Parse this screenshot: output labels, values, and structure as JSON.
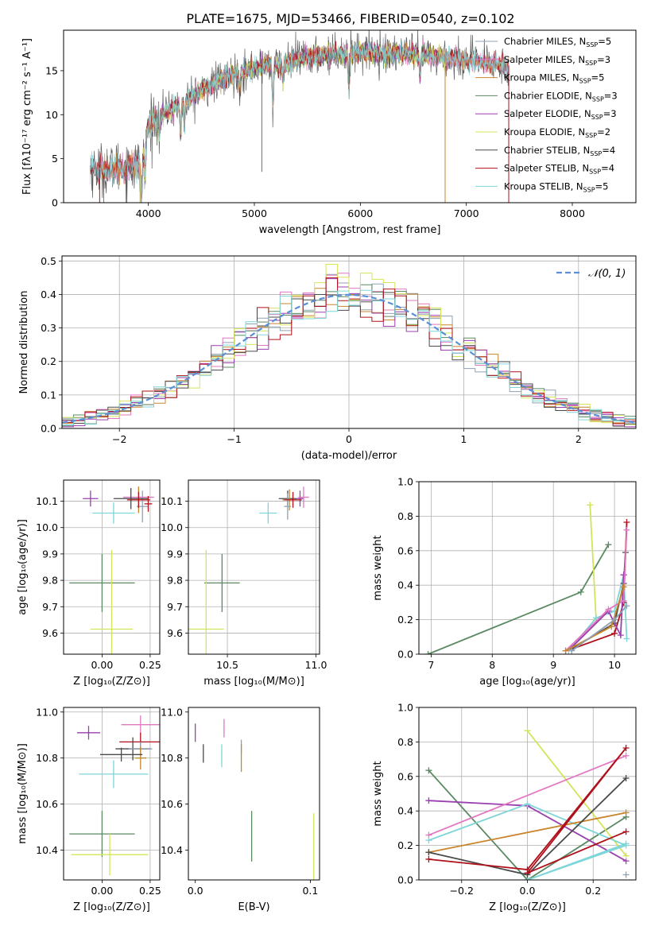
{
  "title": "PLATE=1675, MJD=53466, FIBERID=0540, z=0.102",
  "colors": {
    "Chabrier MILES": "#8fa1b3",
    "Salpeter MILES": "#e377c2",
    "Kroupa MILES": "#c8852b",
    "Chabrier ELODIE": "#5a8a62",
    "Salpeter ELODIE": "#9a3fb0",
    "Kroupa ELODIE": "#d4e45a",
    "Chabrier STELIB": "#4a4a4a",
    "Salpeter STELIB": "#b0101a",
    "Kroupa STELIB": "#7fd6d8",
    "normal": "#5b8fd6"
  },
  "chart_data": [
    {
      "id": "spectrum",
      "type": "line",
      "title": "PLATE=1675, MJD=53466, FIBERID=0540, z=0.102",
      "xlabel": "wavelength [Angstrom, rest frame]",
      "ylabel": "Flux [fλ10⁻¹⁷ erg cm⁻² s⁻¹ A⁻¹]",
      "xlim": [
        3200,
        8600
      ],
      "ylim": [
        0,
        19.6
      ],
      "xticks": [
        4000,
        5000,
        6000,
        7000,
        8000
      ],
      "yticks": [
        0,
        5,
        10,
        15
      ],
      "legend_position": "right",
      "legend": [
        {
          "label": "Chabrier MILES, N",
          "sub": "SSP",
          "suffix": "=5",
          "model": "Chabrier MILES"
        },
        {
          "label": "Salpeter MILES, N",
          "sub": "SSP",
          "suffix": "=3",
          "model": "Salpeter MILES"
        },
        {
          "label": "Kroupa MILES, N",
          "sub": "SSP",
          "suffix": "=5",
          "model": "Kroupa MILES"
        },
        {
          "label": "Chabrier ELODIE, N",
          "sub": "SSP",
          "suffix": "=3",
          "model": "Chabrier ELODIE"
        },
        {
          "label": "Salpeter ELODIE, N",
          "sub": "SSP",
          "suffix": "=3",
          "model": "Salpeter ELODIE"
        },
        {
          "label": "Kroupa ELODIE, N",
          "sub": "SSP",
          "suffix": "=2",
          "model": "Kroupa ELODIE"
        },
        {
          "label": "Chabrier STELIB, N",
          "sub": "SSP",
          "suffix": "=4",
          "model": "Chabrier STELIB"
        },
        {
          "label": "Salpeter STELIB, N",
          "sub": "SSP",
          "suffix": "=4",
          "model": "Salpeter STELIB"
        },
        {
          "label": "Kroupa STELIB, N",
          "sub": "SSP",
          "suffix": "=5",
          "model": "Kroupa STELIB"
        }
      ],
      "continuum": [
        [
          3400,
          4.0
        ],
        [
          3500,
          3.8
        ],
        [
          3600,
          3.7
        ],
        [
          3700,
          3.9
        ],
        [
          3800,
          4.1
        ],
        [
          3900,
          4.4
        ],
        [
          3950,
          5.3
        ],
        [
          4000,
          9.0
        ],
        [
          4100,
          9.8
        ],
        [
          4200,
          10.5
        ],
        [
          4300,
          11.2
        ],
        [
          4400,
          12.0
        ],
        [
          4500,
          12.8
        ],
        [
          4600,
          13.4
        ],
        [
          4700,
          14.0
        ],
        [
          4800,
          14.6
        ],
        [
          4900,
          14.9
        ],
        [
          5000,
          15.4
        ],
        [
          5100,
          15.6
        ],
        [
          5200,
          15.5
        ],
        [
          5300,
          15.9
        ],
        [
          5400,
          16.2
        ],
        [
          5500,
          16.5
        ],
        [
          5600,
          16.6
        ],
        [
          5700,
          16.8
        ],
        [
          5800,
          16.9
        ],
        [
          5900,
          17.0
        ],
        [
          6000,
          17.1
        ],
        [
          6100,
          17.1
        ],
        [
          6200,
          17.0
        ],
        [
          6300,
          16.9
        ],
        [
          6400,
          17.0
        ],
        [
          6500,
          16.8
        ],
        [
          6600,
          16.8
        ],
        [
          6700,
          16.6
        ],
        [
          6800,
          16.5
        ],
        [
          6900,
          16.4
        ],
        [
          7000,
          16.2
        ],
        [
          7100,
          16.0
        ],
        [
          7200,
          15.8
        ],
        [
          7300,
          15.7
        ],
        [
          7400,
          15.6
        ]
      ],
      "absorption_features": [
        [
          3934,
          5.5
        ],
        [
          3969,
          4.0
        ],
        [
          4102,
          2.5
        ],
        [
          4304,
          3.5
        ],
        [
          4340,
          2.5
        ],
        [
          4861,
          2.0
        ],
        [
          5175,
          4.5
        ],
        [
          5270,
          2.0
        ],
        [
          5893,
          4.5
        ],
        [
          6563,
          2.5
        ]
      ],
      "spikes_to_zero": [
        3540,
        3920,
        6800,
        7400
      ],
      "deep_dips": [
        [
          5070,
          3.5
        ],
        [
          5894,
          13.5
        ]
      ]
    },
    {
      "id": "residuals",
      "type": "histogram",
      "xlabel": "(data-model)/error",
      "ylabel": "Normed distribution",
      "xlim": [
        -2.5,
        2.5
      ],
      "ylim": [
        0,
        0.515
      ],
      "xticks": [
        -2,
        -1,
        0,
        1,
        2
      ],
      "yticks": [
        0.0,
        0.1,
        0.2,
        0.3,
        0.4,
        0.5
      ],
      "grid": true,
      "bin_width": 0.1,
      "legend": [
        {
          "label": "𝒩(0, 1)",
          "style": "dashed"
        }
      ],
      "legend_position": "top-right",
      "peak_values": {
        "Kroupa ELODIE": 0.49,
        "Chabrier MILES": 0.46,
        "Salpeter STELIB": 0.45
      }
    },
    {
      "id": "age_vs_Z",
      "type": "errorbar",
      "xlabel": "Z [log₁₀(Z/Z⊙)]",
      "ylabel": "age  [log₁₀(age/yr)]",
      "xlim": [
        -0.2,
        0.3
      ],
      "ylim": [
        9.52,
        10.18
      ],
      "xticks": [
        0.0,
        0.25
      ],
      "yticks": [
        9.6,
        9.7,
        9.8,
        9.9,
        10.0,
        10.1
      ],
      "grid": true,
      "points": [
        {
          "model": "Salpeter ELODIE",
          "x": -0.06,
          "y": 10.11,
          "xerr": 0.04,
          "yerr": 0.03
        },
        {
          "model": "Kroupa STELIB",
          "x": 0.06,
          "y": 10.055,
          "xerr": 0.11,
          "yerr": 0.04
        },
        {
          "model": "Chabrier MILES",
          "x": 0.21,
          "y": 10.08,
          "xerr": 0.03,
          "yerr": 0.06
        },
        {
          "model": "Salpeter MILES",
          "x": 0.19,
          "y": 10.115,
          "xerr": 0.08,
          "yerr": 0.04
        },
        {
          "model": "Kroupa MILES",
          "x": 0.19,
          "y": 10.105,
          "xerr": 0.05,
          "yerr": 0.05
        },
        {
          "model": "Chabrier STELIB",
          "x": 0.15,
          "y": 10.11,
          "xerr": 0.09,
          "yerr": 0.04
        },
        {
          "model": "Salpeter STELIB",
          "x": 0.19,
          "y": 10.105,
          "xerr": 0.06,
          "yerr": 0.03
        },
        {
          "model": "Salpeter STELIB",
          "x": 0.24,
          "y": 10.09,
          "xerr": 0.02,
          "yerr": 0.03
        },
        {
          "model": "Chabrier ELODIE",
          "x": 0.0,
          "y": 9.79,
          "xerr": 0.17,
          "yerr": 0.11
        },
        {
          "model": "Kroupa ELODIE",
          "x": 0.05,
          "y": 9.615,
          "xerr": 0.11,
          "yerr": 0.3
        }
      ]
    },
    {
      "id": "age_vs_mass",
      "type": "errorbar",
      "xlabel": "mass [log₁₀(M/M⊙)]",
      "ylabel": "",
      "xlim": [
        10.28,
        11.02
      ],
      "ylim": [
        9.52,
        10.18
      ],
      "xticks": [
        10.5,
        11.0
      ],
      "yticks": [
        9.6,
        9.7,
        9.8,
        9.9,
        10.0,
        10.1
      ],
      "grid": true,
      "points": [
        {
          "model": "Kroupa STELIB",
          "x": 10.73,
          "y": 10.055,
          "xerr": 0.05,
          "yerr": 0.04
        },
        {
          "model": "Salpeter ELODIE",
          "x": 10.91,
          "y": 10.11,
          "xerr": 0.02,
          "yerr": 0.03
        },
        {
          "model": "Salpeter MILES",
          "x": 10.93,
          "y": 10.115,
          "xerr": 0.03,
          "yerr": 0.04
        },
        {
          "model": "Chabrier STELIB",
          "x": 10.84,
          "y": 10.11,
          "xerr": 0.05,
          "yerr": 0.03
        },
        {
          "model": "Kroupa MILES",
          "x": 10.85,
          "y": 10.105,
          "xerr": 0.04,
          "yerr": 0.04
        },
        {
          "model": "Chabrier MILES",
          "x": 10.84,
          "y": 10.08,
          "xerr": 0.02,
          "yerr": 0.05
        },
        {
          "model": "Salpeter STELIB",
          "x": 10.87,
          "y": 10.105,
          "xerr": 0.05,
          "yerr": 0.03
        },
        {
          "model": "Chabrier ELODIE",
          "x": 10.47,
          "y": 9.79,
          "xerr": 0.1,
          "yerr": 0.11
        },
        {
          "model": "Kroupa ELODIE",
          "x": 10.38,
          "y": 9.615,
          "xerr": 0.1,
          "yerr": 0.3
        }
      ]
    },
    {
      "id": "weight_vs_age",
      "type": "line",
      "xlabel": "age  [log₁₀(age/yr)]",
      "ylabel": "mass weight",
      "xlim": [
        6.8,
        10.35
      ],
      "ylim": [
        0,
        1.0
      ],
      "xticks": [
        7,
        8,
        9,
        10
      ],
      "yticks": [
        0.0,
        0.2,
        0.4,
        0.6,
        0.8,
        1.0
      ],
      "grid": true,
      "series": [
        {
          "model": "Chabrier ELODIE",
          "x": [
            6.95,
            9.45,
            9.9
          ],
          "y": [
            0.0,
            0.36,
            0.635
          ]
        },
        {
          "model": "Kroupa ELODIE",
          "x": [
            9.6,
            9.7
          ],
          "y": [
            0.865,
            0.2
          ]
        },
        {
          "model": "Kroupa STELIB",
          "x": [
            9.25,
            9.7,
            10.0,
            10.15,
            10.2
          ],
          "y": [
            0.02,
            0.21,
            0.25,
            0.46,
            0.09
          ]
        },
        {
          "model": "Salpeter STELIB",
          "x": [
            9.3,
            10.0,
            10.15,
            10.2
          ],
          "y": [
            0.03,
            0.12,
            0.3,
            0.765
          ]
        },
        {
          "model": "Chabrier STELIB",
          "x": [
            9.3,
            10.0,
            10.15,
            10.18
          ],
          "y": [
            0.03,
            0.18,
            0.41,
            0.59
          ]
        },
        {
          "model": "Salpeter ELODIE",
          "x": [
            9.3,
            9.9,
            10.1,
            10.15
          ],
          "y": [
            0.04,
            0.25,
            0.11,
            0.46
          ]
        },
        {
          "model": "Salpeter MILES",
          "x": [
            9.2,
            9.9,
            10.15,
            10.2
          ],
          "y": [
            0.02,
            0.26,
            0.31,
            0.72
          ]
        },
        {
          "model": "Kroupa MILES",
          "x": [
            9.2,
            9.95,
            10.15
          ],
          "y": [
            0.02,
            0.16,
            0.39
          ]
        },
        {
          "model": "Chabrier MILES",
          "x": [
            9.3,
            10.0,
            10.2
          ],
          "y": [
            0.02,
            0.2,
            0.28
          ]
        }
      ]
    },
    {
      "id": "mass_vs_Z",
      "type": "errorbar",
      "xlabel": "Z [log₁₀(Z/Z⊙)]",
      "ylabel": "mass [log₁₀(M/M⊙)]",
      "xlim": [
        -0.2,
        0.3
      ],
      "ylim": [
        10.27,
        11.02
      ],
      "xticks": [
        0.0,
        0.25
      ],
      "yticks": [
        10.4,
        10.6,
        10.8,
        11.0
      ],
      "grid": true,
      "points": [
        {
          "model": "Salpeter ELODIE",
          "x": -0.07,
          "y": 10.91,
          "xerr": 0.06,
          "yerr": 0.03
        },
        {
          "model": "Salpeter MILES",
          "x": 0.2,
          "y": 10.945,
          "xerr": 0.1,
          "yerr": 0.04
        },
        {
          "model": "Salpeter STELIB",
          "x": 0.2,
          "y": 10.87,
          "xerr": 0.11,
          "yerr": 0.04
        },
        {
          "model": "Chabrier STELIB",
          "x": 0.16,
          "y": 10.84,
          "xerr": 0.09,
          "yerr": 0.05
        },
        {
          "model": "Chabrier MILES",
          "x": 0.2,
          "y": 10.84,
          "xerr": 0.06,
          "yerr": 0.03
        },
        {
          "model": "Kroupa MILES",
          "x": 0.2,
          "y": 10.8,
          "xerr": 0.03,
          "yerr": 0.05
        },
        {
          "model": "Chabrier STELIB",
          "x": 0.1,
          "y": 10.815,
          "xerr": 0.11,
          "yerr": 0.03
        },
        {
          "model": "Kroupa STELIB",
          "x": 0.06,
          "y": 10.73,
          "xerr": 0.18,
          "yerr": 0.06
        },
        {
          "model": "Chabrier ELODIE",
          "x": 0.0,
          "y": 10.47,
          "xerr": 0.17,
          "yerr": 0.1
        },
        {
          "model": "Kroupa ELODIE",
          "x": 0.04,
          "y": 10.38,
          "xerr": 0.2,
          "yerr": 0.09
        }
      ]
    },
    {
      "id": "mass_vs_ebv",
      "type": "errorbar",
      "xlabel": "E(B-V)",
      "ylabel": "",
      "xlim": [
        -0.006,
        0.108
      ],
      "ylim": [
        10.27,
        11.02
      ],
      "xticks": [
        0.0,
        0.1
      ],
      "yticks": [
        10.4,
        10.6,
        10.8,
        11.0
      ],
      "grid": false,
      "points": [
        {
          "model": "Salpeter ELODIE",
          "x": 0.0,
          "y": 10.91,
          "xerr": 0.0,
          "yerr": 0.04
        },
        {
          "model": "Chabrier STELIB",
          "x": 0.007,
          "y": 10.82,
          "xerr": 0.0,
          "yerr": 0.04
        },
        {
          "model": "Salpeter MILES",
          "x": 0.025,
          "y": 10.93,
          "xerr": 0.0,
          "yerr": 0.04
        },
        {
          "model": "Kroupa STELIB",
          "x": 0.023,
          "y": 10.81,
          "xerr": 0.0,
          "yerr": 0.05
        },
        {
          "model": "Chabrier MILES",
          "x": 0.04,
          "y": 10.85,
          "xerr": 0.0,
          "yerr": 0.03
        },
        {
          "model": "Kroupa MILES",
          "x": 0.04,
          "y": 10.8,
          "xerr": 0.0,
          "yerr": 0.06
        },
        {
          "model": "Chabrier ELODIE",
          "x": 0.049,
          "y": 10.46,
          "xerr": 0.0,
          "yerr": 0.11
        },
        {
          "model": "Kroupa ELODIE",
          "x": 0.103,
          "y": 10.38,
          "xerr": 0.0,
          "yerr": 0.18
        }
      ]
    },
    {
      "id": "weight_vs_Z",
      "type": "line",
      "xlabel": "Z [log₁₀(Z/Z⊙)]",
      "ylabel": "mass weight",
      "xlim": [
        -0.33,
        0.33
      ],
      "ylim": [
        0,
        1.0
      ],
      "xticks": [
        -0.2,
        0.0,
        0.2
      ],
      "yticks": [
        0.0,
        0.2,
        0.4,
        0.6,
        0.8,
        1.0
      ],
      "grid": true,
      "series": [
        {
          "model": "Chabrier ELODIE",
          "x": [
            -0.3,
            0.0,
            0.3
          ],
          "y": [
            0.635,
            0.0,
            0.365
          ]
        },
        {
          "model": "Salpeter ELODIE",
          "x": [
            -0.3,
            0.0,
            0.3
          ],
          "y": [
            0.46,
            0.43,
            0.11
          ]
        },
        {
          "model": "Kroupa ELODIE",
          "x": [
            0.0,
            0.3
          ],
          "y": [
            0.865,
            0.14
          ]
        },
        {
          "model": "Salpeter MILES",
          "x": [
            -0.3,
            0.3
          ],
          "y": [
            0.26,
            0.72
          ]
        },
        {
          "model": "Kroupa STELIB",
          "x": [
            -0.3,
            0.0,
            0.3,
            0.0,
            0.3
          ],
          "y": [
            0.23,
            0.44,
            0.2,
            0.0,
            0.21
          ]
        },
        {
          "model": "Kroupa MILES",
          "x": [
            -0.3,
            0.3
          ],
          "y": [
            0.16,
            0.39
          ]
        },
        {
          "model": "Chabrier STELIB",
          "x": [
            -0.3,
            0.0,
            0.3
          ],
          "y": [
            0.16,
            0.03,
            0.59
          ]
        },
        {
          "model": "Salpeter STELIB",
          "x": [
            -0.3,
            0.0,
            0.3,
            0.0,
            0.3
          ],
          "y": [
            0.12,
            0.06,
            0.765,
            0.04,
            0.28
          ]
        },
        {
          "model": "Chabrier MILES",
          "x": [
            0.3
          ],
          "y": [
            0.03
          ]
        }
      ]
    }
  ]
}
